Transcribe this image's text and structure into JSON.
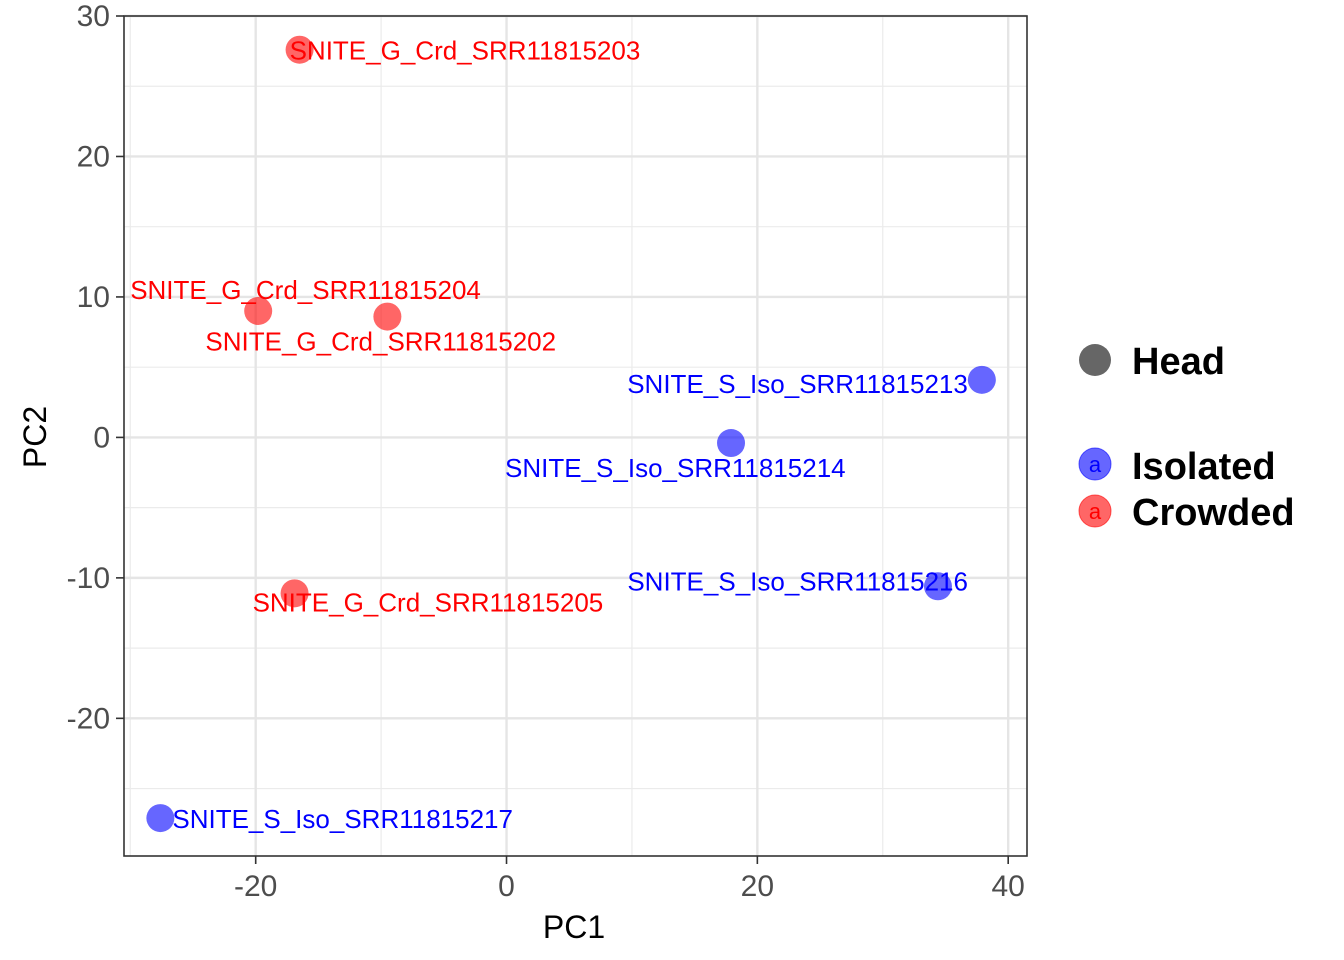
{
  "chart_data": {
    "type": "scatter",
    "xlabel": "PC1",
    "ylabel": "PC2",
    "xlim": [
      -30.5,
      41.5
    ],
    "ylim": [
      -29.8,
      30.0
    ],
    "x_ticks": [
      -20,
      0,
      20,
      40
    ],
    "y_ticks": [
      -20,
      -10,
      0,
      10,
      20,
      30
    ],
    "x_tick_labels": [
      "-20",
      "0",
      "20",
      "40"
    ],
    "y_tick_labels": [
      "-20",
      "-10",
      "0",
      "10",
      "20",
      "30"
    ],
    "grid": true,
    "legend_position": "right",
    "legend": {
      "shape_title": "Head",
      "groups": [
        {
          "name": "Isolated",
          "color": "#0000FF"
        },
        {
          "name": "Crowded",
          "color": "#FF0000"
        }
      ],
      "key_glyph": "a"
    },
    "colors": {
      "Isolated": "#0000FF",
      "Crowded": "#FF0000",
      "grey": "#666666"
    },
    "points": [
      {
        "label": "SNITE_G_Crd_SRR11815203",
        "group": "Crowded",
        "x": -16.5,
        "y": 27.6
      },
      {
        "label": "SNITE_G_Crd_SRR11815204",
        "group": "Crowded",
        "x": -19.8,
        "y": 9.0
      },
      {
        "label": "SNITE_G_Crd_SRR11815202",
        "group": "Crowded",
        "x": -9.5,
        "y": 8.6
      },
      {
        "label": "SNITE_G_Crd_SRR11815205",
        "group": "Crowded",
        "x": -16.9,
        "y": -11.1
      },
      {
        "label": "SNITE_S_Iso_SRR11815213",
        "group": "Isolated",
        "x": 37.9,
        "y": 4.1
      },
      {
        "label": "SNITE_S_Iso_SRR11815214",
        "group": "Isolated",
        "x": 17.9,
        "y": -0.4
      },
      {
        "label": "SNITE_S_Iso_SRR11815216",
        "group": "Isolated",
        "x": 34.4,
        "y": -10.6
      },
      {
        "label": "SNITE_S_Iso_SRR11815217",
        "group": "Isolated",
        "x": -27.6,
        "y": -27.1
      }
    ]
  }
}
